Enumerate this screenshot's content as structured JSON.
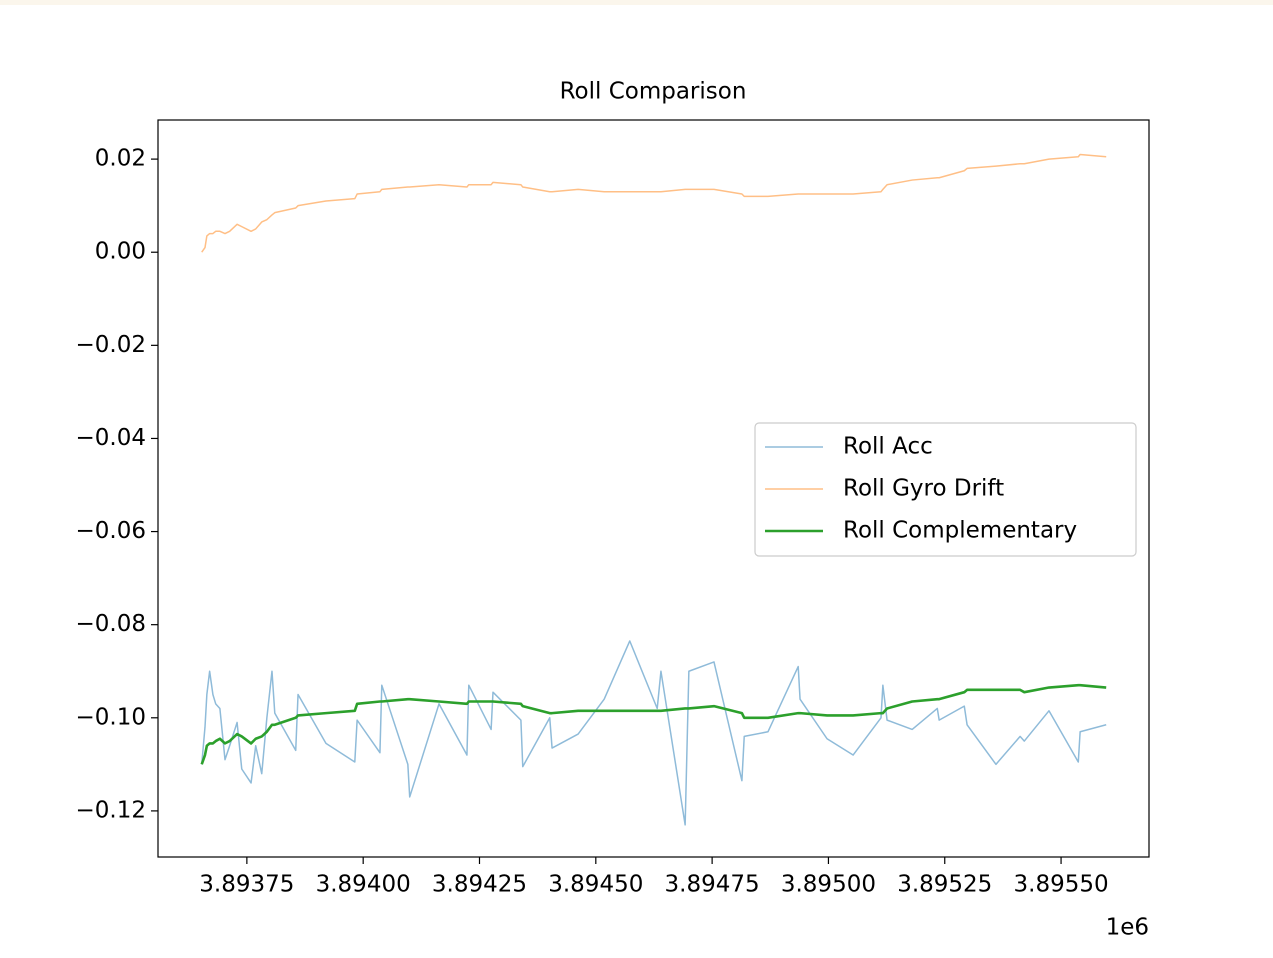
{
  "chart_data": {
    "type": "line",
    "title": "Roll Comparison",
    "x": [
      3893653,
      3893660,
      3893664,
      3893670,
      3893677,
      3893683,
      3893692,
      3893703,
      3893713,
      3893729,
      3893739,
      3893759,
      3893769,
      3893782,
      3893793,
      3893804,
      3893810,
      3893855,
      3893860,
      3893920,
      3893982,
      3893987,
      3894036,
      3894040,
      3894096,
      3894100,
      3894163,
      3894223,
      3894227,
      3894275,
      3894279,
      3894339,
      3894343,
      3894401,
      3894406,
      3894462,
      3894518,
      3894573,
      3894632,
      3894640,
      3894692,
      3894700,
      3894754,
      3894814,
      3894819,
      3894870,
      3894935,
      3894939,
      3894997,
      3895053,
      3895113,
      3895117,
      3895126,
      3895180,
      3895234,
      3895238,
      3895292,
      3895298,
      3895360,
      3895412,
      3895421,
      3895474,
      3895537,
      3895541,
      3895597
    ],
    "series": [
      {
        "name": "Roll Acc",
        "color": "#8fbbd9",
        "width": 1.5,
        "values": [
          -0.11,
          -0.102,
          -0.095,
          -0.09,
          -0.095,
          -0.097,
          -0.098,
          -0.109,
          -0.106,
          -0.101,
          -0.111,
          -0.114,
          -0.106,
          -0.112,
          -0.1,
          -0.09,
          -0.099,
          -0.107,
          -0.095,
          -0.1055,
          -0.1095,
          -0.1005,
          -0.1075,
          -0.093,
          -0.11,
          -0.117,
          -0.097,
          -0.108,
          -0.093,
          -0.1025,
          -0.0945,
          -0.1005,
          -0.1105,
          -0.1,
          -0.1065,
          -0.1035,
          -0.096,
          -0.0835,
          -0.098,
          -0.09,
          -0.123,
          -0.09,
          -0.088,
          -0.1135,
          -0.104,
          -0.103,
          -0.089,
          -0.096,
          -0.1045,
          -0.108,
          -0.1,
          -0.093,
          -0.1005,
          -0.1025,
          -0.098,
          -0.1005,
          -0.0975,
          -0.1015,
          -0.11,
          -0.104,
          -0.105,
          -0.0985,
          -0.1095,
          -0.103,
          -0.1015
        ]
      },
      {
        "name": "Roll Gyro Drift",
        "color": "#ffbf86",
        "width": 1.5,
        "values": [
          0.0,
          0.001,
          0.0035,
          0.004,
          0.004,
          0.0045,
          0.0045,
          0.004,
          0.0045,
          0.006,
          0.0055,
          0.0045,
          0.005,
          0.0065,
          0.007,
          0.008,
          0.0085,
          0.0095,
          0.01,
          0.011,
          0.0115,
          0.0125,
          0.013,
          0.0135,
          0.014,
          0.014,
          0.0145,
          0.014,
          0.0145,
          0.0145,
          0.015,
          0.0145,
          0.014,
          0.013,
          0.013,
          0.0135,
          0.013,
          0.013,
          0.013,
          0.013,
          0.0135,
          0.0135,
          0.0135,
          0.0125,
          0.012,
          0.012,
          0.0125,
          0.0125,
          0.0125,
          0.0125,
          0.013,
          0.0135,
          0.0145,
          0.0155,
          0.016,
          0.016,
          0.0175,
          0.018,
          0.0185,
          0.019,
          0.019,
          0.02,
          0.0205,
          0.021,
          0.0205
        ]
      },
      {
        "name": "Roll Complementary",
        "color": "#2ca02c",
        "width": 2.6,
        "values": [
          -0.11,
          -0.108,
          -0.106,
          -0.1055,
          -0.1055,
          -0.105,
          -0.1045,
          -0.1055,
          -0.105,
          -0.1035,
          -0.104,
          -0.1055,
          -0.1045,
          -0.104,
          -0.103,
          -0.1015,
          -0.1015,
          -0.1,
          -0.0995,
          -0.099,
          -0.0985,
          -0.097,
          -0.0965,
          -0.0965,
          -0.096,
          -0.096,
          -0.0965,
          -0.097,
          -0.0965,
          -0.0965,
          -0.0965,
          -0.097,
          -0.0975,
          -0.099,
          -0.099,
          -0.0985,
          -0.0985,
          -0.0985,
          -0.0985,
          -0.0985,
          -0.098,
          -0.098,
          -0.0975,
          -0.099,
          -0.1,
          -0.1,
          -0.099,
          -0.099,
          -0.0995,
          -0.0995,
          -0.099,
          -0.099,
          -0.098,
          -0.0965,
          -0.096,
          -0.096,
          -0.0945,
          -0.094,
          -0.094,
          -0.094,
          -0.0945,
          -0.0935,
          -0.093,
          -0.093,
          -0.0935
        ]
      }
    ],
    "xlim": [
      3893559,
      3895689
    ],
    "xticks": [
      {
        "value": 3893750,
        "label": "3.89375"
      },
      {
        "value": 3894000,
        "label": "3.89400"
      },
      {
        "value": 3894250,
        "label": "3.89425"
      },
      {
        "value": 3894500,
        "label": "3.89450"
      },
      {
        "value": 3894750,
        "label": "3.89475"
      },
      {
        "value": 3895000,
        "label": "3.89500"
      },
      {
        "value": 3895250,
        "label": "3.89525"
      },
      {
        "value": 3895500,
        "label": "3.89550"
      }
    ],
    "x_offset_label": "1e6",
    "ylim": [
      -0.1299,
      0.0284
    ],
    "yticks": [
      0.02,
      {
        "value": 0,
        "label": "0.00"
      },
      {
        "value": -0.02,
        "label": "−0.02"
      },
      {
        "value": -0.04,
        "label": "−0.04"
      },
      {
        "value": -0.06,
        "label": "−0.06"
      },
      {
        "value": -0.08,
        "label": "−0.08"
      },
      {
        "value": -0.1,
        "label": "−0.10"
      },
      {
        "value": -0.12,
        "label": "−0.12"
      }
    ],
    "legend": "center right"
  }
}
